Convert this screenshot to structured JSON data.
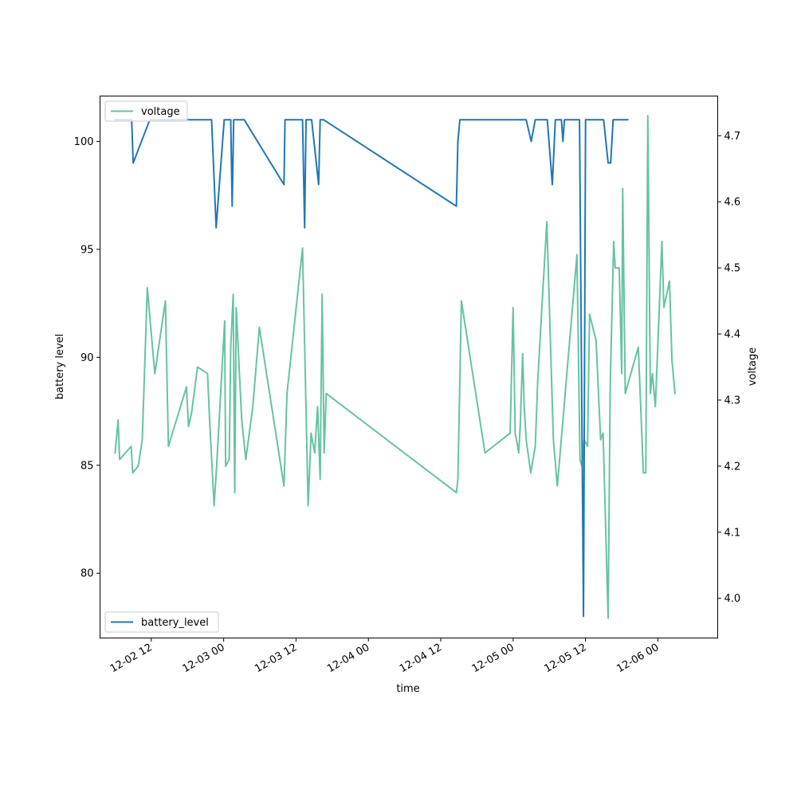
{
  "chart_data": {
    "type": "line",
    "xlabel": "time",
    "ylabel_left": "battery level",
    "ylabel_right": "voltage",
    "x_tick_labels": [
      "12-02 12",
      "12-03 00",
      "12-03 12",
      "12-04 00",
      "12-04 12",
      "12-05 00",
      "12-05 12",
      "12-06 00"
    ],
    "x_ticks": [
      "2021-12-02 12:00",
      "2021-12-03 00:00",
      "2021-12-03 12:00",
      "2021-12-04 00:00",
      "2021-12-04 12:00",
      "2021-12-05 00:00",
      "2021-12-05 12:00",
      "2021-12-06 00:00"
    ],
    "xlim": [
      "2021-12-02 03:30",
      "2021-12-06 09:55"
    ],
    "ylim_left": [
      77,
      102.1
    ],
    "ylim_right": [
      3.94,
      4.76
    ],
    "yticks_left": [
      80,
      85,
      90,
      95,
      100
    ],
    "yticks_right": [
      4.0,
      4.1,
      4.2,
      4.3,
      4.4,
      4.5,
      4.6,
      4.7
    ],
    "grid": false,
    "legend": [
      {
        "name": "voltage",
        "location": "upper-left"
      },
      {
        "name": "battery_level",
        "location": "lower-left"
      }
    ],
    "series": [
      {
        "name": "battery_level",
        "axis": "left",
        "color": "#1f77b4",
        "points": [
          [
            "2021-12-02 06:00",
            101
          ],
          [
            "2021-12-02 08:45",
            101
          ],
          [
            "2021-12-02 09:00",
            99
          ],
          [
            "2021-12-02 11:45",
            101
          ],
          [
            "2021-12-02 22:00",
            101
          ],
          [
            "2021-12-02 22:45",
            96
          ],
          [
            "2021-12-03 00:05",
            101
          ],
          [
            "2021-12-03 01:10",
            101
          ],
          [
            "2021-12-03 01:25",
            97
          ],
          [
            "2021-12-03 01:40",
            101
          ],
          [
            "2021-12-03 03:25",
            101
          ],
          [
            "2021-12-03 10:00",
            98
          ],
          [
            "2021-12-03 10:10",
            101
          ],
          [
            "2021-12-03 13:05",
            101
          ],
          [
            "2021-12-03 13:25",
            96
          ],
          [
            "2021-12-03 13:40",
            101
          ],
          [
            "2021-12-03 14:35",
            101
          ],
          [
            "2021-12-03 15:45",
            98
          ],
          [
            "2021-12-03 16:00",
            101
          ],
          [
            "2021-12-03 16:35",
            101
          ],
          [
            "2021-12-04 14:35",
            97
          ],
          [
            "2021-12-04 14:50",
            100
          ],
          [
            "2021-12-04 15:10",
            101
          ],
          [
            "2021-12-05 02:10",
            101
          ],
          [
            "2021-12-05 03:00",
            100
          ],
          [
            "2021-12-05 03:40",
            101
          ],
          [
            "2021-12-05 05:40",
            101
          ],
          [
            "2021-12-05 06:30",
            98
          ],
          [
            "2021-12-05 07:00",
            101
          ],
          [
            "2021-12-05 08:00",
            101
          ],
          [
            "2021-12-05 08:15",
            100
          ],
          [
            "2021-12-05 08:30",
            101
          ],
          [
            "2021-12-05 11:00",
            101
          ],
          [
            "2021-12-05 11:40",
            78
          ],
          [
            "2021-12-05 12:00",
            101
          ],
          [
            "2021-12-05 15:00",
            101
          ],
          [
            "2021-12-05 15:45",
            99
          ],
          [
            "2021-12-05 16:10",
            99
          ],
          [
            "2021-12-05 16:35",
            101
          ],
          [
            "2021-12-05 19:00",
            101
          ]
        ]
      },
      {
        "name": "voltage",
        "axis": "right",
        "color": "#66c2a5",
        "points": [
          [
            "2021-12-02 06:00",
            4.22
          ],
          [
            "2021-12-02 06:30",
            4.27
          ],
          [
            "2021-12-02 06:45",
            4.21
          ],
          [
            "2021-12-02 08:40",
            4.23
          ],
          [
            "2021-12-02 08:55",
            4.19
          ],
          [
            "2021-12-02 09:50",
            4.2
          ],
          [
            "2021-12-02 10:30",
            4.24
          ],
          [
            "2021-12-02 11:20",
            4.47
          ],
          [
            "2021-12-02 12:35",
            4.34
          ],
          [
            "2021-12-02 14:20",
            4.45
          ],
          [
            "2021-12-02 14:50",
            4.23
          ],
          [
            "2021-12-02 17:50",
            4.32
          ],
          [
            "2021-12-02 18:10",
            4.26
          ],
          [
            "2021-12-02 18:40",
            4.28
          ],
          [
            "2021-12-02 19:40",
            4.35
          ],
          [
            "2021-12-02 21:20",
            4.34
          ],
          [
            "2021-12-02 21:40",
            4.27
          ],
          [
            "2021-12-02 22:25",
            4.14
          ],
          [
            "2021-12-02 22:50",
            4.2
          ],
          [
            "2021-12-03 00:10",
            4.42
          ],
          [
            "2021-12-03 00:20",
            4.2
          ],
          [
            "2021-12-03 00:55",
            4.21
          ],
          [
            "2021-12-03 01:10",
            4.38
          ],
          [
            "2021-12-03 01:35",
            4.46
          ],
          [
            "2021-12-03 01:50",
            4.16
          ],
          [
            "2021-12-03 02:05",
            4.44
          ],
          [
            "2021-12-03 03:00",
            4.27
          ],
          [
            "2021-12-03 03:40",
            4.21
          ],
          [
            "2021-12-03 04:50",
            4.29
          ],
          [
            "2021-12-03 05:55",
            4.41
          ],
          [
            "2021-12-03 10:00",
            4.17
          ],
          [
            "2021-12-03 10:30",
            4.31
          ],
          [
            "2021-12-03 13:05",
            4.53
          ],
          [
            "2021-12-03 14:00",
            4.14
          ],
          [
            "2021-12-03 14:30",
            4.25
          ],
          [
            "2021-12-03 15:05",
            4.22
          ],
          [
            "2021-12-03 15:35",
            4.29
          ],
          [
            "2021-12-03 16:00",
            4.18
          ],
          [
            "2021-12-03 16:20",
            4.46
          ],
          [
            "2021-12-03 16:40",
            4.22
          ],
          [
            "2021-12-03 17:00",
            4.31
          ],
          [
            "2021-12-04 14:35",
            4.16
          ],
          [
            "2021-12-04 14:50",
            4.18
          ],
          [
            "2021-12-04 15:25",
            4.45
          ],
          [
            "2021-12-04 19:20",
            4.22
          ],
          [
            "2021-12-04 23:30",
            4.25
          ],
          [
            "2021-12-05 00:00",
            4.44
          ],
          [
            "2021-12-05 00:20",
            4.25
          ],
          [
            "2021-12-05 00:45",
            4.23
          ],
          [
            "2021-12-05 00:55",
            4.22
          ],
          [
            "2021-12-05 01:10",
            4.26
          ],
          [
            "2021-12-05 01:35",
            4.37
          ],
          [
            "2021-12-05 01:50",
            4.29
          ],
          [
            "2021-12-05 02:10",
            4.24
          ],
          [
            "2021-12-05 02:55",
            4.19
          ],
          [
            "2021-12-05 03:40",
            4.23
          ],
          [
            "2021-12-05 04:05",
            4.33
          ],
          [
            "2021-12-05 05:35",
            4.57
          ],
          [
            "2021-12-05 06:40",
            4.24
          ],
          [
            "2021-12-05 07:20",
            4.17
          ],
          [
            "2021-12-05 10:35",
            4.52
          ],
          [
            "2021-12-05 11:05",
            4.21
          ],
          [
            "2021-12-05 11:25",
            4.2
          ],
          [
            "2021-12-05 11:45",
            4.24
          ],
          [
            "2021-12-05 12:20",
            4.23
          ],
          [
            "2021-12-05 12:40",
            4.43
          ],
          [
            "2021-12-05 13:45",
            4.39
          ],
          [
            "2021-12-05 14:30",
            4.24
          ],
          [
            "2021-12-05 14:55",
            4.25
          ],
          [
            "2021-12-05 15:45",
            3.97
          ],
          [
            "2021-12-05 16:05",
            4.32
          ],
          [
            "2021-12-05 16:40",
            4.54
          ],
          [
            "2021-12-05 16:55",
            4.5
          ],
          [
            "2021-12-05 17:35",
            4.5
          ],
          [
            "2021-12-05 18:00",
            4.34
          ],
          [
            "2021-12-05 18:10",
            4.62
          ],
          [
            "2021-12-05 18:35",
            4.31
          ],
          [
            "2021-12-05 20:45",
            4.38
          ],
          [
            "2021-12-05 21:35",
            4.19
          ],
          [
            "2021-12-05 22:00",
            4.19
          ],
          [
            "2021-12-05 22:20",
            4.73
          ],
          [
            "2021-12-05 22:45",
            4.31
          ],
          [
            "2021-12-05 23:05",
            4.34
          ],
          [
            "2021-12-05 23:35",
            4.29
          ],
          [
            "2021-12-06 00:40",
            4.54
          ],
          [
            "2021-12-06 01:00",
            4.44
          ],
          [
            "2021-12-06 01:55",
            4.48
          ],
          [
            "2021-12-06 02:20",
            4.36
          ],
          [
            "2021-12-06 02:50",
            4.31
          ]
        ]
      }
    ]
  }
}
